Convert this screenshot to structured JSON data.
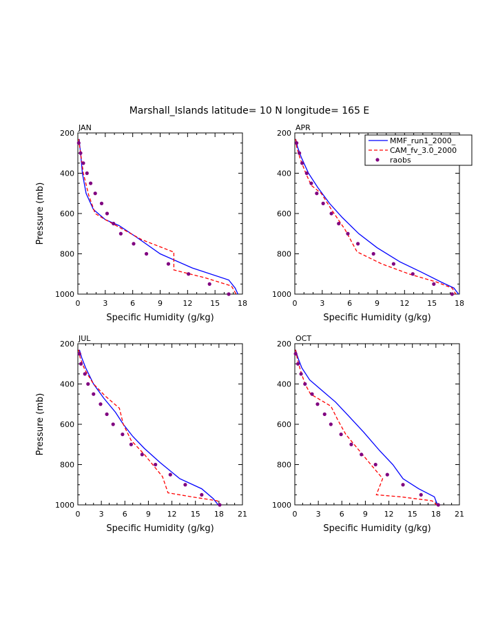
{
  "title": "Marshall_Islands  latitude= 10 N longitude= 165 E",
  "legend": {
    "placement": "top-right of APR panel",
    "entries": [
      "MMF_run1_2000_",
      "CAM_fv_3.0_2000",
      "raobs"
    ]
  },
  "colors": {
    "mmf": "#0000ff",
    "cam": "#ff0000",
    "raobs": "#800080"
  },
  "chart_data": [
    {
      "type": "line",
      "title": "JAN",
      "xlabel": "Specific Humidity (g/kg)",
      "ylabel": "Pressure (mb)",
      "xlim": [
        0,
        18
      ],
      "ylim": [
        200,
        1000
      ],
      "y_inverted": true,
      "xticks": [
        "0",
        "3",
        "6",
        "9",
        "12",
        "15",
        "18"
      ],
      "yticks": [
        "200",
        "400",
        "600",
        "800",
        "1000"
      ],
      "series": [
        {
          "name": "MMF_run1_2000_",
          "style": "solid",
          "points": [
            [
              0.15,
              230
            ],
            [
              0.2,
              260
            ],
            [
              0.3,
              300
            ],
            [
              0.5,
              400
            ],
            [
              0.9,
              500
            ],
            [
              1.7,
              580
            ],
            [
              3,
              630
            ],
            [
              4.5,
              660
            ],
            [
              6.5,
              720
            ],
            [
              9,
              800
            ],
            [
              12.5,
              870
            ],
            [
              16.5,
              930
            ],
            [
              17.2,
              970
            ],
            [
              17.5,
              1000
            ]
          ]
        },
        {
          "name": "CAM_fv_3.0_2000",
          "style": "dashed",
          "points": [
            [
              0.1,
              230
            ],
            [
              0.2,
              270
            ],
            [
              0.3,
              300
            ],
            [
              0.6,
              400
            ],
            [
              1.2,
              510
            ],
            [
              1.9,
              600
            ],
            [
              3,
              630
            ],
            [
              5,
              680
            ],
            [
              7,
              730
            ],
            [
              10.4,
              790
            ],
            [
              10.5,
              790
            ],
            [
              10.5,
              880
            ],
            [
              14,
              920
            ],
            [
              16.8,
              960
            ],
            [
              17.3,
              1000
            ]
          ]
        },
        {
          "name": "raobs",
          "style": "dots",
          "points": [
            [
              0.1,
              250
            ],
            [
              0.3,
              300
            ],
            [
              0.6,
              350
            ],
            [
              1,
              400
            ],
            [
              1.4,
              450
            ],
            [
              1.9,
              500
            ],
            [
              2.6,
              550
            ],
            [
              3.2,
              600
            ],
            [
              3.9,
              650
            ],
            [
              4.7,
              700
            ],
            [
              6.1,
              750
            ],
            [
              7.5,
              800
            ],
            [
              9.9,
              850
            ],
            [
              12.1,
              900
            ],
            [
              14.4,
              950
            ],
            [
              16.5,
              1000
            ]
          ]
        }
      ]
    },
    {
      "type": "line",
      "title": "APR",
      "xlabel": "Specific Humidity (g/kg)",
      "ylabel": "",
      "xlim": [
        0,
        18
      ],
      "ylim": [
        200,
        1000
      ],
      "y_inverted": true,
      "xticks": [
        "0",
        "3",
        "6",
        "9",
        "12",
        "15",
        "18"
      ],
      "yticks": [
        "200",
        "400",
        "600",
        "800",
        "1000"
      ],
      "series": [
        {
          "name": "MMF_run1_2000_",
          "style": "solid",
          "points": [
            [
              0.1,
              230
            ],
            [
              0.3,
              270
            ],
            [
              0.7,
              320
            ],
            [
              1.5,
              400
            ],
            [
              2.5,
              470
            ],
            [
              3.8,
              550
            ],
            [
              5.2,
              620
            ],
            [
              7,
              700
            ],
            [
              9,
              770
            ],
            [
              11.5,
              840
            ],
            [
              13.8,
              890
            ],
            [
              16,
              940
            ],
            [
              17.4,
              970
            ],
            [
              17.9,
              1000
            ]
          ]
        },
        {
          "name": "CAM_fv_3.0_2000",
          "style": "dashed",
          "points": [
            [
              0.1,
              230
            ],
            [
              0.2,
              270
            ],
            [
              0.6,
              330
            ],
            [
              1.2,
              400
            ],
            [
              1.8,
              460
            ],
            [
              2.9,
              500
            ],
            [
              4,
              580
            ],
            [
              5.5,
              680
            ],
            [
              6.8,
              790
            ],
            [
              9.5,
              850
            ],
            [
              12.5,
              900
            ],
            [
              15.5,
              940
            ],
            [
              17.2,
              970
            ],
            [
              17.6,
              1000
            ]
          ]
        },
        {
          "name": "raobs",
          "style": "dots",
          "points": [
            [
              0.2,
              250
            ],
            [
              0.5,
              300
            ],
            [
              0.8,
              350
            ],
            [
              1.3,
              400
            ],
            [
              1.8,
              450
            ],
            [
              2.4,
              500
            ],
            [
              3.1,
              550
            ],
            [
              4,
              600
            ],
            [
              4.8,
              650
            ],
            [
              5.8,
              700
            ],
            [
              6.9,
              750
            ],
            [
              8.6,
              800
            ],
            [
              10.8,
              850
            ],
            [
              12.9,
              900
            ],
            [
              15.2,
              950
            ],
            [
              17.2,
              1000
            ]
          ]
        }
      ]
    },
    {
      "type": "line",
      "title": "JUL",
      "xlabel": "Specific Humidity (g/kg)",
      "ylabel": "Pressure (mb)",
      "xlim": [
        0,
        21
      ],
      "ylim": [
        200,
        1000
      ],
      "y_inverted": true,
      "xticks": [
        "0",
        "3",
        "6",
        "9",
        "12",
        "15",
        "18",
        "21"
      ],
      "yticks": [
        "200",
        "400",
        "600",
        "800",
        "1000"
      ],
      "series": [
        {
          "name": "MMF_run1_2000_",
          "style": "solid",
          "points": [
            [
              0.2,
              230
            ],
            [
              0.5,
              270
            ],
            [
              1,
              320
            ],
            [
              2,
              400
            ],
            [
              3.3,
              470
            ],
            [
              4.8,
              540
            ],
            [
              5.8,
              600
            ],
            [
              7,
              660
            ],
            [
              8.5,
              720
            ],
            [
              10.5,
              790
            ],
            [
              13,
              870
            ],
            [
              15.8,
              920
            ],
            [
              17.3,
              970
            ],
            [
              17.9,
              1000
            ]
          ]
        },
        {
          "name": "CAM_fv_3.0_2000",
          "style": "dashed",
          "points": [
            [
              0.1,
              230
            ],
            [
              0.3,
              270
            ],
            [
              0.9,
              330
            ],
            [
              2,
              400
            ],
            [
              3.5,
              460
            ],
            [
              5.3,
              520
            ],
            [
              5.8,
              600
            ],
            [
              6.8,
              680
            ],
            [
              8.5,
              750
            ],
            [
              10.8,
              860
            ],
            [
              11.5,
              940
            ],
            [
              14.5,
              960
            ],
            [
              17.8,
              980
            ],
            [
              18.1,
              1000
            ]
          ]
        },
        {
          "name": "raobs",
          "style": "dots",
          "points": [
            [
              0.2,
              250
            ],
            [
              0.4,
              300
            ],
            [
              0.9,
              350
            ],
            [
              1.3,
              400
            ],
            [
              2,
              450
            ],
            [
              2.9,
              500
            ],
            [
              3.7,
              550
            ],
            [
              4.5,
              600
            ],
            [
              5.7,
              650
            ],
            [
              6.8,
              700
            ],
            [
              8.2,
              750
            ],
            [
              9.9,
              800
            ],
            [
              11.8,
              850
            ],
            [
              13.7,
              900
            ],
            [
              15.8,
              950
            ],
            [
              18.1,
              1000
            ]
          ]
        }
      ]
    },
    {
      "type": "line",
      "title": "OCT",
      "xlabel": "Specific Humidity (g/kg)",
      "ylabel": "",
      "xlim": [
        0,
        21
      ],
      "ylim": [
        200,
        1000
      ],
      "y_inverted": true,
      "xticks": [
        "0",
        "3",
        "6",
        "9",
        "12",
        "15",
        "18",
        "21"
      ],
      "yticks": [
        "200",
        "400",
        "600",
        "800",
        "1000"
      ],
      "series": [
        {
          "name": "MMF_run1_2000_",
          "style": "solid",
          "points": [
            [
              0.1,
              230
            ],
            [
              0.4,
              270
            ],
            [
              0.9,
              320
            ],
            [
              1.9,
              380
            ],
            [
              3.4,
              430
            ],
            [
              5.2,
              490
            ],
            [
              6.9,
              560
            ],
            [
              8.8,
              640
            ],
            [
              10.8,
              730
            ],
            [
              12.5,
              800
            ],
            [
              13.8,
              870
            ],
            [
              15.8,
              920
            ],
            [
              17.8,
              960
            ],
            [
              18.2,
              1000
            ]
          ]
        },
        {
          "name": "CAM_fv_3.0_2000",
          "style": "dashed",
          "points": [
            [
              0.1,
              230
            ],
            [
              0.3,
              270
            ],
            [
              0.7,
              330
            ],
            [
              1.3,
              400
            ],
            [
              2,
              450
            ],
            [
              4.6,
              510
            ],
            [
              5.5,
              580
            ],
            [
              6.5,
              650
            ],
            [
              8,
              720
            ],
            [
              9.7,
              800
            ],
            [
              11,
              860
            ],
            [
              11.2,
              870
            ],
            [
              10.4,
              950
            ],
            [
              13.5,
              960
            ],
            [
              17.5,
              980
            ],
            [
              18.1,
              1000
            ]
          ]
        },
        {
          "name": "raobs",
          "style": "dots",
          "points": [
            [
              0.1,
              250
            ],
            [
              0.4,
              300
            ],
            [
              0.8,
              350
            ],
            [
              1.3,
              400
            ],
            [
              2.2,
              450
            ],
            [
              2.9,
              500
            ],
            [
              3.8,
              550
            ],
            [
              4.6,
              600
            ],
            [
              5.9,
              650
            ],
            [
              7.2,
              700
            ],
            [
              8.5,
              750
            ],
            [
              10.3,
              800
            ],
            [
              11.8,
              850
            ],
            [
              13.8,
              900
            ],
            [
              16.1,
              950
            ],
            [
              18.3,
              1000
            ]
          ]
        }
      ]
    }
  ]
}
